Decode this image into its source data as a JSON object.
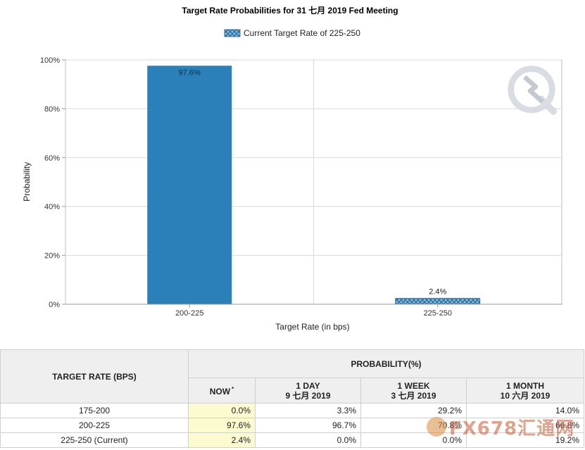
{
  "chart_data": {
    "type": "bar",
    "title": "Target Rate Probabilities for 31 七月 2019 Fed Meeting",
    "legend": {
      "label": "Current Target Rate of 225-250",
      "placement": "top-center"
    },
    "categories": [
      "200-225",
      "225-250"
    ],
    "values": [
      97.6,
      2.4
    ],
    "value_labels": [
      "97.6%",
      "2.4%"
    ],
    "current_category": "225-250",
    "xlabel": "Target Rate (in bps)",
    "ylabel": "Probability",
    "ylim": [
      0,
      100
    ],
    "yticks": [
      "0%",
      "20%",
      "40%",
      "60%",
      "80%",
      "100%"
    ],
    "grid": true,
    "colors": {
      "bar": "#2b80b9",
      "current_bar": "#7fb8e0",
      "hatch": "#1d5f8c",
      "grid": "#d9d9d9"
    }
  },
  "table": {
    "col_target": "TARGET RATE (BPS)",
    "col_prob": "PROBABILITY(%)",
    "sub_headers": [
      {
        "line1": "NOW",
        "mark": "*"
      },
      {
        "line1": "1 DAY",
        "line2": "9 七月 2019"
      },
      {
        "line1": "1 WEEK",
        "line2": "3 七月 2019"
      },
      {
        "line1": "1 MONTH",
        "line2": "10 六月 2019"
      }
    ],
    "rows": [
      {
        "rate": "175-200",
        "now": "0.0%",
        "day": "3.3%",
        "week": "29.2%",
        "month": "14.0%"
      },
      {
        "rate": "200-225",
        "now": "97.6%",
        "day": "96.7%",
        "week": "70.8%",
        "month": "66.8%"
      },
      {
        "rate": "225-250 (Current)",
        "now": "2.4%",
        "day": "0.0%",
        "week": "0.0%",
        "month": "19.2%"
      }
    ]
  },
  "watermark": {
    "brand": "FX678",
    "suffix": "汇通网",
    "icon": "fx678-logo-icon"
  }
}
